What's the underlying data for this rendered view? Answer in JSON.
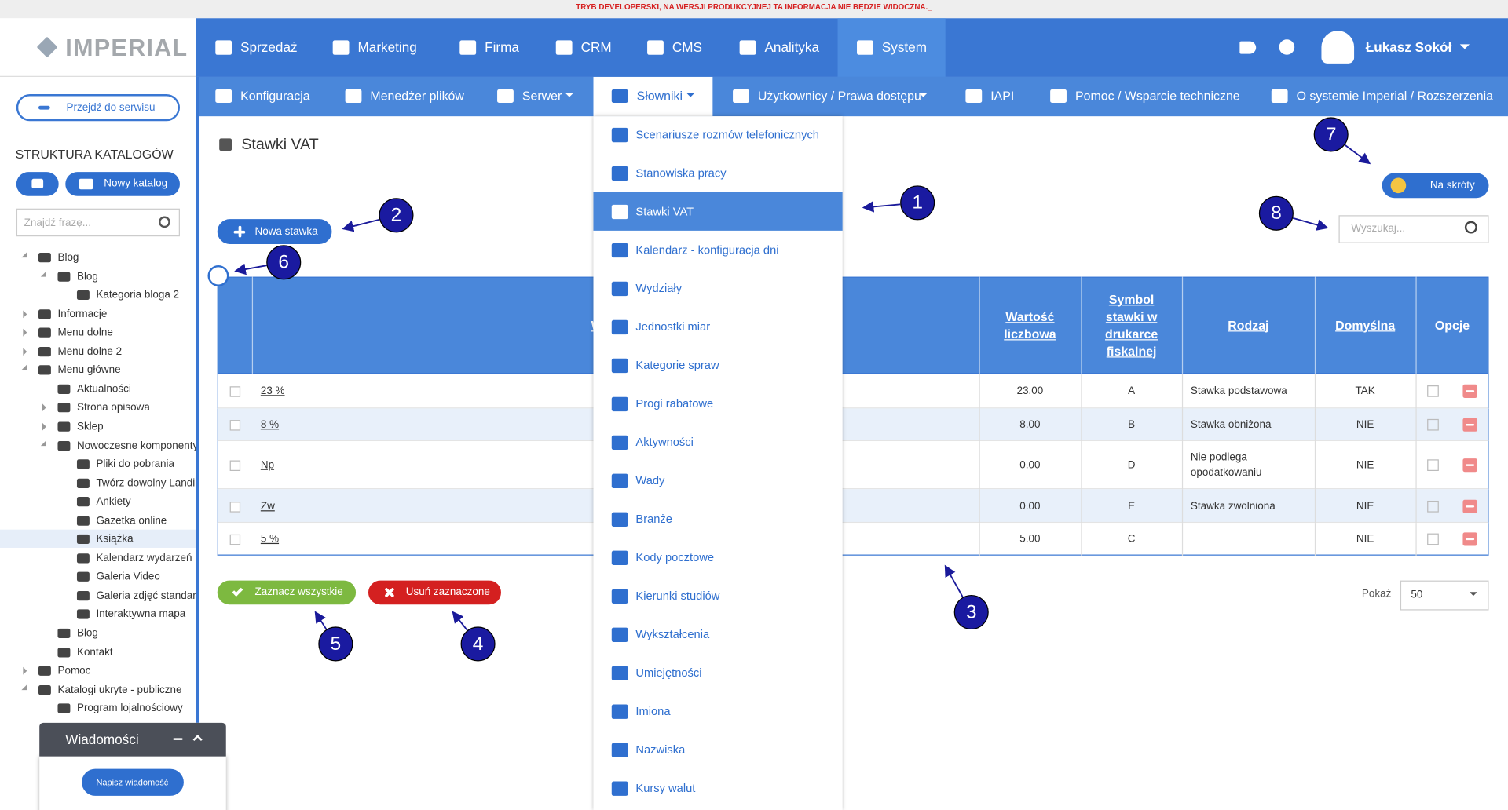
{
  "dev_banner": "TRYB DEVELOPERSKI, NA WERSJI PRODUKCYJNEJ TA INFORMACJA NIE BĘDZIE WIDOCZNA._",
  "logo": "IMPERIAL",
  "top_nav": [
    "Sprzedaż",
    "Marketing",
    "Firma",
    "CRM",
    "CMS",
    "Analityka",
    "System"
  ],
  "user": "Łukasz Sokół",
  "sub_nav": [
    "Konfiguracja",
    "Menedżer plików",
    "Serwer",
    "Słowniki",
    "Użytkownicy / Prawa dostępu",
    "IAPI",
    "Pomoc / Wsparcie techniczne",
    "O systemie Imperial / Rozszerzenia"
  ],
  "sidebar": {
    "back_button": "Przejdź do serwisu",
    "heading": "STRUKTURA KATALOGÓW",
    "new_catalog": "Nowy katalog",
    "search_placeholder": "Znajdź frazę...",
    "tree": [
      {
        "label": "Blog",
        "depth": 0
      },
      {
        "label": "Blog",
        "depth": 1
      },
      {
        "label": "Kategoria bloga 2",
        "depth": 2
      },
      {
        "label": "Informacje",
        "depth": 0
      },
      {
        "label": "Menu dolne",
        "depth": 0
      },
      {
        "label": "Menu dolne 2",
        "depth": 0
      },
      {
        "label": "Menu główne",
        "depth": 0
      },
      {
        "label": "Aktualności",
        "depth": 1
      },
      {
        "label": "Strona opisowa",
        "depth": 1
      },
      {
        "label": "Sklep",
        "depth": 1
      },
      {
        "label": "Nowoczesne komponenty",
        "depth": 1
      },
      {
        "label": "Pliki do pobrania",
        "depth": 2
      },
      {
        "label": "Twórz dowolny Landin",
        "depth": 2
      },
      {
        "label": "Ankiety",
        "depth": 2
      },
      {
        "label": "Gazetka online",
        "depth": 2
      },
      {
        "label": "Książka",
        "depth": 2
      },
      {
        "label": "Kalendarz wydarzeń",
        "depth": 2
      },
      {
        "label": "Galeria Video",
        "depth": 2
      },
      {
        "label": "Galeria zdjęć standard",
        "depth": 2
      },
      {
        "label": "Interaktywna mapa",
        "depth": 2
      },
      {
        "label": "Blog",
        "depth": 1
      },
      {
        "label": "Kontakt",
        "depth": 1
      },
      {
        "label": "Pomoc",
        "depth": 0
      },
      {
        "label": "Katalogi ukryte - publiczne",
        "depth": 0
      },
      {
        "label": "Program lojalnościowy",
        "depth": 1
      }
    ]
  },
  "page_title": "Stawki VAT",
  "new_rate": "Nowa stawka",
  "shortcuts": "Na skróty",
  "search_placeholder": "Wyszukaj...",
  "table": {
    "headers": [
      "Wartość",
      "Wartość liczbowa",
      "Symbol stawki w drukarce fiskalnej",
      "Rodzaj",
      "Domyślna",
      "Opcje"
    ],
    "rows": [
      {
        "value": "23 %",
        "number": "23.00",
        "symbol": "A",
        "kind": "Stawka podstawowa",
        "default": "TAK"
      },
      {
        "value": "8 %",
        "number": "8.00",
        "symbol": "B",
        "kind": "Stawka obniżona",
        "default": "NIE"
      },
      {
        "value": "Np",
        "number": "0.00",
        "symbol": "D",
        "kind": "Nie podlega opodatkowaniu",
        "default": "NIE"
      },
      {
        "value": "Zw",
        "number": "0.00",
        "symbol": "E",
        "kind": "Stawka zwolniona",
        "default": "NIE"
      },
      {
        "value": "5 %",
        "number": "5.00",
        "symbol": "C",
        "default": "NIE"
      }
    ]
  },
  "select_all": "Zaznacz wszystkie",
  "delete_selected": "Usuń zaznaczone",
  "show_label": "Pokaż",
  "page_size": "50",
  "dropdown": {
    "active": 2,
    "items": [
      "Scenariusze rozmów telefonicznych",
      "Stanowiska pracy",
      "Stawki VAT",
      "Kalendarz - konfiguracja dni",
      "Wydziały",
      "Jednostki miar",
      "Kategorie spraw",
      "Progi rabatowe",
      "Aktywności",
      "Wady",
      "Branże",
      "Kody pocztowe",
      "Kierunki studiów",
      "Wykształcenia",
      "Umiejętności",
      "Imiona",
      "Nazwiska",
      "Kursy walut"
    ]
  },
  "callouts": [
    "1",
    "2",
    "3",
    "4",
    "5",
    "6",
    "7",
    "8"
  ],
  "messages": {
    "title": "Wiadomości",
    "button": "Napisz wiadomość"
  }
}
